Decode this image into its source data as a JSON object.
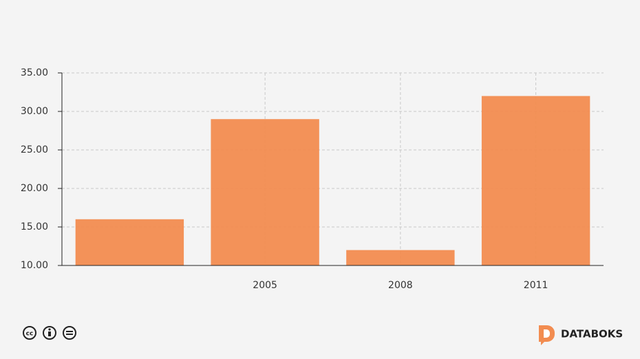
{
  "chart_data": {
    "type": "bar",
    "categories": [
      null,
      "2005",
      "2008",
      "2011"
    ],
    "values": [
      16,
      29,
      12,
      32
    ],
    "color": "#f28c50",
    "ylim": [
      10,
      35
    ],
    "yticks": [
      {
        "value": 10,
        "label": "10.00"
      },
      {
        "value": 15,
        "label": "15.00"
      },
      {
        "value": 20,
        "label": "20.00"
      },
      {
        "value": 25,
        "label": "25.00"
      },
      {
        "value": 30,
        "label": "30.00"
      },
      {
        "value": 35,
        "label": "35.00"
      }
    ],
    "grid": true
  },
  "footer": {
    "brand": "DATABOKS"
  }
}
